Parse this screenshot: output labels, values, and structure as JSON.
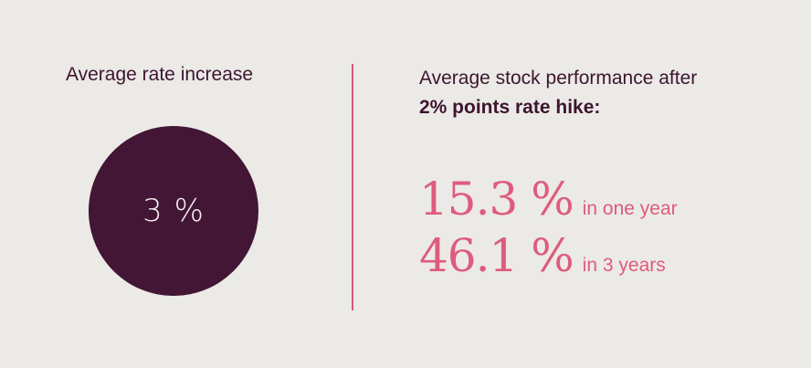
{
  "left": {
    "title": "Average rate increase",
    "circle_value": "3 %"
  },
  "right": {
    "title_line1": "Average stock performance after",
    "title_line2": "2% points rate hike:",
    "stats": [
      {
        "value": "15.3 %",
        "label": "in one year"
      },
      {
        "value": "46.1 %",
        "label": "in 3 years"
      }
    ]
  },
  "colors": {
    "background": "#ebeae6",
    "primary_dark": "#421634",
    "accent_pink": "#df5b7e"
  }
}
